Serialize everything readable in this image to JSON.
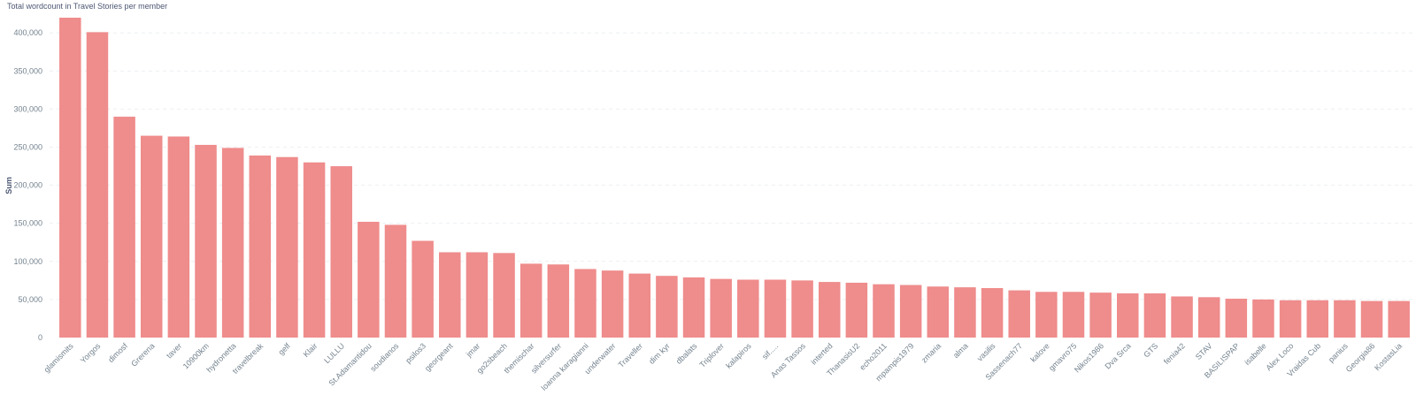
{
  "chart_data": {
    "type": "bar",
    "title": "Total wordcount in Travel Stories per member",
    "xlabel": "",
    "ylabel": "Sum",
    "ylim": [
      0,
      420000
    ],
    "yticks": [
      0,
      50000,
      100000,
      150000,
      200000,
      250000,
      300000,
      350000,
      400000
    ],
    "ytick_labels": [
      "0",
      "50,000",
      "100,000",
      "150,000",
      "200,000",
      "250,000",
      "300,000",
      "350,000",
      "400,000"
    ],
    "grid": "horizontal dashed",
    "bar_color": "#ef8c8c",
    "categories": [
      "glamismits",
      "Yorgos",
      "dimosf",
      "Grerena",
      "taver",
      "10900km",
      "hydronetta",
      "travelbreak",
      "gelf",
      "Klair",
      "LULLU",
      "St.Adamantidou",
      "soudianos",
      "psilos3",
      "georgeant",
      "jmar",
      "go2sbeach",
      "themischar",
      "silversurfer",
      "Ioanna karagianni",
      "underwater",
      "Traveller",
      "dim kyr",
      "dbalats",
      "Triplover",
      "kalapiros",
      "sif.....",
      "Anas Tassos",
      "interted",
      "ThanasisU2",
      "echo2011",
      "mpampis1979",
      "zmaria",
      "alma",
      "vasilis",
      "Sassenach77",
      "kalove",
      "gmavro75",
      "Nikos1986",
      "Dva Srca",
      "GTS",
      "fenia42",
      "STAV",
      "BASILISPAP",
      "isabelle",
      "Alex Loco",
      "Vraidas Cub",
      "panius",
      "Georgia86",
      "KostasLia"
    ],
    "values": [
      420000,
      401000,
      290000,
      265000,
      264000,
      253000,
      249000,
      239000,
      237000,
      230000,
      225000,
      152000,
      148000,
      127000,
      112000,
      112000,
      111000,
      97000,
      96000,
      90000,
      88000,
      84000,
      81000,
      79000,
      77000,
      76000,
      76000,
      75000,
      73000,
      72000,
      70000,
      69000,
      67000,
      66000,
      65000,
      62000,
      60000,
      60000,
      59000,
      58000,
      58000,
      54000,
      53000,
      51000,
      50000,
      49000,
      49000,
      49000,
      48000,
      48000
    ]
  }
}
